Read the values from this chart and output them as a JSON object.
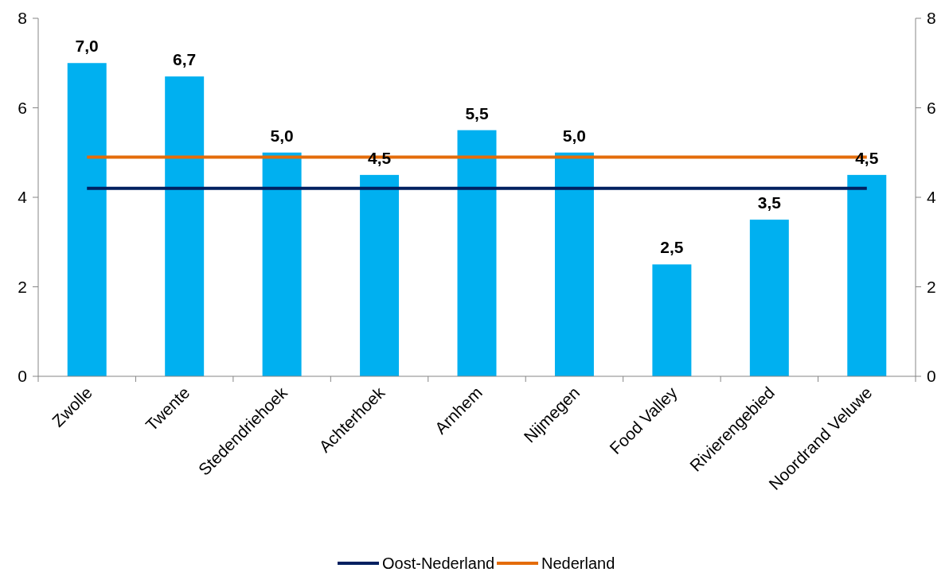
{
  "chart_data": {
    "type": "bar",
    "categories": [
      "Zwolle",
      "Twente",
      "Stedendriehoek",
      "Achterhoek",
      "Arnhem",
      "Nijmegen",
      "Food Valley",
      "Rivierengebied",
      "Noordrand Veluwe"
    ],
    "series": [
      {
        "color": "#00b0f0",
        "values": [
          7.0,
          6.7,
          5.0,
          4.5,
          5.5,
          5.0,
          2.5,
          3.5,
          4.5
        ],
        "value_labels": [
          "7,0",
          "6,7",
          "5,0",
          "4,5",
          "5,5",
          "5,0",
          "2,5",
          "3,5",
          "4,5"
        ]
      },
      {
        "type": "line",
        "name": "Oost-Nederland",
        "color": "#002060",
        "values": [
          4.2,
          4.2,
          4.2,
          4.2,
          4.2,
          4.2,
          4.2,
          4.2,
          4.2
        ]
      },
      {
        "type": "line",
        "name": "Nederland",
        "color": "#e46c0a",
        "values": [
          4.9,
          4.9,
          4.9,
          4.9,
          4.9,
          4.9,
          4.9,
          4.9,
          4.9
        ]
      }
    ],
    "ylim": [
      0,
      8
    ],
    "yticks": [
      0,
      2,
      4,
      6,
      8
    ],
    "y2lim": [
      0,
      8
    ],
    "y2ticks": [
      0,
      2,
      4,
      6,
      8
    ],
    "legend": "bottom",
    "grid": false,
    "marker": "none",
    "line_style": "solid"
  }
}
